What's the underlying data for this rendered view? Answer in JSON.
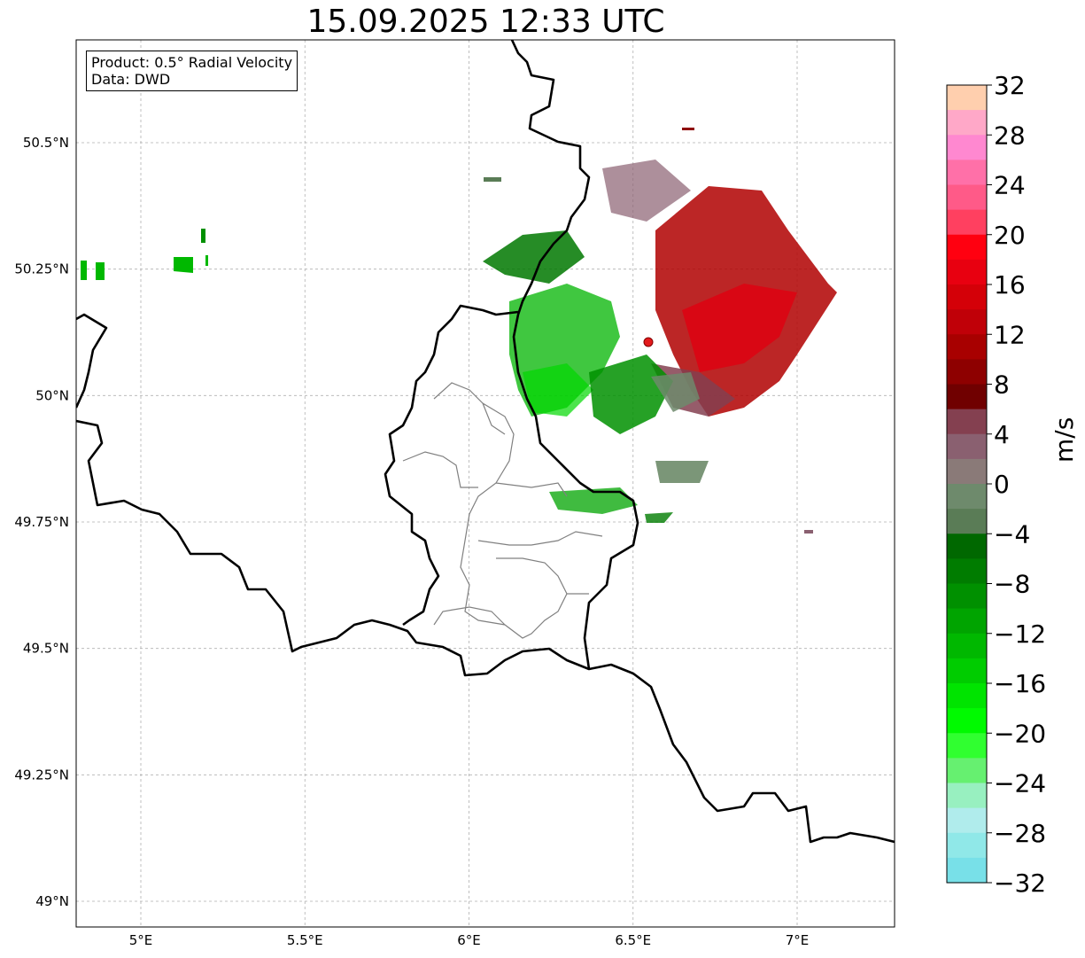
{
  "title": "15.09.2025 12:33 UTC",
  "infobox": {
    "product": "Product: 0.5° Radial Velocity",
    "data": "Data: DWD"
  },
  "axes": {
    "lon_ticks": [
      "5°E",
      "5.5°E",
      "6°E",
      "6.5°E",
      "7°E"
    ],
    "lat_ticks": [
      "50.5°N",
      "50.25°N",
      "50°N",
      "49.75°N",
      "49.5°N",
      "49.25°N",
      "49°N"
    ],
    "lon_range": [
      4.8,
      7.3
    ],
    "lat_range": [
      48.95,
      50.7
    ],
    "grid": true
  },
  "radar_site": {
    "lon": 6.55,
    "lat": 50.11,
    "color": "#e31a1c"
  },
  "colorbar": {
    "unit": "m/s",
    "ticks": [
      "32",
      "28",
      "24",
      "20",
      "16",
      "12",
      "8",
      "4",
      "0",
      "−4",
      "−8",
      "−12",
      "−16",
      "−20",
      "−24",
      "−28",
      "−32"
    ],
    "range": [
      -32,
      32
    ],
    "colors_top_to_bottom": [
      "#ffcfae",
      "#ffa8c8",
      "#ff88d0",
      "#ff70a8",
      "#ff5a88",
      "#ff4060",
      "#ff0010",
      "#e80010",
      "#d40008",
      "#c00008",
      "#a80000",
      "#8e0000",
      "#700000",
      "#844050",
      "#8a6070",
      "#8a7a78",
      "#6e8a6c",
      "#5a7c56",
      "#006800",
      "#007c00",
      "#009000",
      "#00a400",
      "#00b800",
      "#00cc00",
      "#00e400",
      "#00fa00",
      "#30ff30",
      "#66f070",
      "#98f0c0",
      "#b0ecec",
      "#90e8e8",
      "#78e0e8"
    ]
  }
}
